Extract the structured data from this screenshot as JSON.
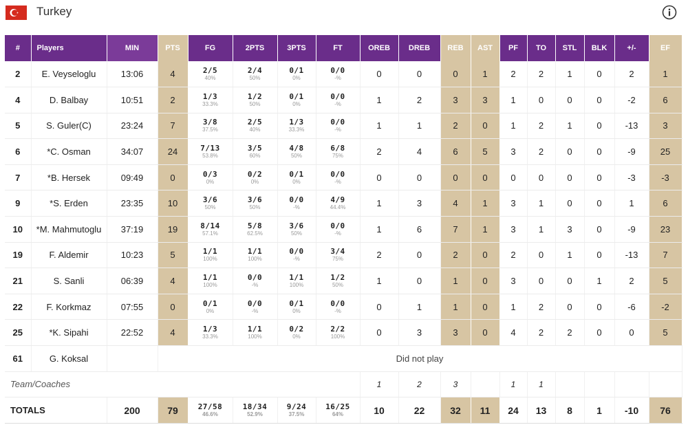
{
  "team": {
    "name": "Turkey",
    "flag_icon": "turkey-flag-icon",
    "flag_color": "#d52b1e"
  },
  "colors": {
    "header": "#6a2d8a",
    "highlight": "#d7c5a3"
  },
  "columns": [
    "#",
    "Players",
    "MIN",
    "PTS",
    "FG",
    "2PTS",
    "3PTS",
    "FT",
    "OREB",
    "DREB",
    "REB",
    "AST",
    "PF",
    "TO",
    "STL",
    "BLK",
    "+/-",
    "EF"
  ],
  "players": [
    {
      "no": "2",
      "name": "E. Veyseloglu",
      "min": "13:06",
      "pts": "4",
      "fg": "2/5",
      "fg_pct": "40%",
      "p2": "2/4",
      "p2_pct": "50%",
      "p3": "0/1",
      "p3_pct": "0%",
      "ft": "0/0",
      "ft_pct": "-%",
      "oreb": "0",
      "dreb": "0",
      "reb": "0",
      "ast": "1",
      "pf": "2",
      "to": "2",
      "stl": "1",
      "blk": "0",
      "pm": "2",
      "ef": "1"
    },
    {
      "no": "4",
      "name": "D. Balbay",
      "min": "10:51",
      "pts": "2",
      "fg": "1/3",
      "fg_pct": "33.3%",
      "p2": "1/2",
      "p2_pct": "50%",
      "p3": "0/1",
      "p3_pct": "0%",
      "ft": "0/0",
      "ft_pct": "-%",
      "oreb": "1",
      "dreb": "2",
      "reb": "3",
      "ast": "3",
      "pf": "1",
      "to": "0",
      "stl": "0",
      "blk": "0",
      "pm": "-2",
      "ef": "6"
    },
    {
      "no": "5",
      "name": "S. Guler(C)",
      "min": "23:24",
      "pts": "7",
      "fg": "3/8",
      "fg_pct": "37.5%",
      "p2": "2/5",
      "p2_pct": "40%",
      "p3": "1/3",
      "p3_pct": "33.3%",
      "ft": "0/0",
      "ft_pct": "-%",
      "oreb": "1",
      "dreb": "1",
      "reb": "2",
      "ast": "0",
      "pf": "1",
      "to": "2",
      "stl": "1",
      "blk": "0",
      "pm": "-13",
      "ef": "3"
    },
    {
      "no": "6",
      "name": "*C. Osman",
      "min": "34:07",
      "pts": "24",
      "fg": "7/13",
      "fg_pct": "53.8%",
      "p2": "3/5",
      "p2_pct": "60%",
      "p3": "4/8",
      "p3_pct": "50%",
      "ft": "6/8",
      "ft_pct": "75%",
      "oreb": "2",
      "dreb": "4",
      "reb": "6",
      "ast": "5",
      "pf": "3",
      "to": "2",
      "stl": "0",
      "blk": "0",
      "pm": "-9",
      "ef": "25"
    },
    {
      "no": "7",
      "name": "*B. Hersek",
      "min": "09:49",
      "pts": "0",
      "fg": "0/3",
      "fg_pct": "0%",
      "p2": "0/2",
      "p2_pct": "0%",
      "p3": "0/1",
      "p3_pct": "0%",
      "ft": "0/0",
      "ft_pct": "-%",
      "oreb": "0",
      "dreb": "0",
      "reb": "0",
      "ast": "0",
      "pf": "0",
      "to": "0",
      "stl": "0",
      "blk": "0",
      "pm": "-3",
      "ef": "-3"
    },
    {
      "no": "9",
      "name": "*S. Erden",
      "min": "23:35",
      "pts": "10",
      "fg": "3/6",
      "fg_pct": "50%",
      "p2": "3/6",
      "p2_pct": "50%",
      "p3": "0/0",
      "p3_pct": "-%",
      "ft": "4/9",
      "ft_pct": "44.4%",
      "oreb": "1",
      "dreb": "3",
      "reb": "4",
      "ast": "1",
      "pf": "3",
      "to": "1",
      "stl": "0",
      "blk": "0",
      "pm": "1",
      "ef": "6"
    },
    {
      "no": "10",
      "name": "*M. Mahmutoglu",
      "min": "37:19",
      "pts": "19",
      "fg": "8/14",
      "fg_pct": "57.1%",
      "p2": "5/8",
      "p2_pct": "62.5%",
      "p3": "3/6",
      "p3_pct": "50%",
      "ft": "0/0",
      "ft_pct": "-%",
      "oreb": "1",
      "dreb": "6",
      "reb": "7",
      "ast": "1",
      "pf": "3",
      "to": "1",
      "stl": "3",
      "blk": "0",
      "pm": "-9",
      "ef": "23"
    },
    {
      "no": "19",
      "name": "F. Aldemir",
      "min": "10:23",
      "pts": "5",
      "fg": "1/1",
      "fg_pct": "100%",
      "p2": "1/1",
      "p2_pct": "100%",
      "p3": "0/0",
      "p3_pct": "-%",
      "ft": "3/4",
      "ft_pct": "75%",
      "oreb": "2",
      "dreb": "0",
      "reb": "2",
      "ast": "0",
      "pf": "2",
      "to": "0",
      "stl": "1",
      "blk": "0",
      "pm": "-13",
      "ef": "7"
    },
    {
      "no": "21",
      "name": "S. Sanli",
      "min": "06:39",
      "pts": "4",
      "fg": "1/1",
      "fg_pct": "100%",
      "p2": "0/0",
      "p2_pct": "-%",
      "p3": "1/1",
      "p3_pct": "100%",
      "ft": "1/2",
      "ft_pct": "50%",
      "oreb": "1",
      "dreb": "0",
      "reb": "1",
      "ast": "0",
      "pf": "3",
      "to": "0",
      "stl": "0",
      "blk": "1",
      "pm": "2",
      "ef": "5"
    },
    {
      "no": "22",
      "name": "F. Korkmaz",
      "min": "07:55",
      "pts": "0",
      "fg": "0/1",
      "fg_pct": "0%",
      "p2": "0/0",
      "p2_pct": "-%",
      "p3": "0/1",
      "p3_pct": "0%",
      "ft": "0/0",
      "ft_pct": "-%",
      "oreb": "0",
      "dreb": "1",
      "reb": "1",
      "ast": "0",
      "pf": "1",
      "to": "2",
      "stl": "0",
      "blk": "0",
      "pm": "-6",
      "ef": "-2"
    },
    {
      "no": "25",
      "name": "*K. Sipahi",
      "min": "22:52",
      "pts": "4",
      "fg": "1/3",
      "fg_pct": "33.3%",
      "p2": "1/1",
      "p2_pct": "100%",
      "p3": "0/2",
      "p3_pct": "0%",
      "ft": "2/2",
      "ft_pct": "100%",
      "oreb": "0",
      "dreb": "3",
      "reb": "3",
      "ast": "0",
      "pf": "4",
      "to": "2",
      "stl": "2",
      "blk": "0",
      "pm": "0",
      "ef": "5"
    }
  ],
  "dnp_player": {
    "no": "61",
    "name": "G. Koksal",
    "note": "Did not play"
  },
  "team_coaches": {
    "label": "Team/Coaches",
    "oreb": "1",
    "dreb": "2",
    "reb": "3",
    "pf": "1",
    "to": "1"
  },
  "totals": {
    "label": "TOTALS",
    "min": "200",
    "pts": "79",
    "fg": "27/58",
    "fg_pct": "46.6%",
    "p2": "18/34",
    "p2_pct": "52.9%",
    "p3": "9/24",
    "p3_pct": "37.5%",
    "ft": "16/25",
    "ft_pct": "64%",
    "oreb": "10",
    "dreb": "22",
    "reb": "32",
    "ast": "11",
    "pf": "24",
    "to": "13",
    "stl": "8",
    "blk": "1",
    "pm": "-10",
    "ef": "76"
  }
}
